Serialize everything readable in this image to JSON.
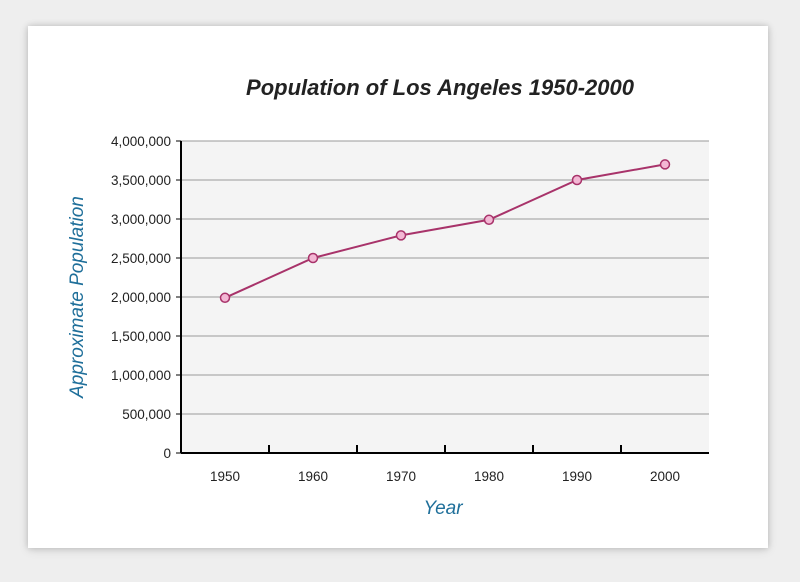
{
  "chart_data": {
    "type": "line",
    "title": "Population of Los Angeles 1950-2000",
    "xlabel": "Year",
    "ylabel": "Approximate Population",
    "x": [
      "1950",
      "1960",
      "1970",
      "1980",
      "1990",
      "2000"
    ],
    "series": [
      {
        "name": "Population",
        "values": [
          1990000,
          2500000,
          2790000,
          2990000,
          3500000,
          3700000
        ]
      }
    ],
    "ylim": [
      0,
      4000000
    ],
    "yticks": [
      "0",
      "500,000",
      "1,000,000",
      "1,500,000",
      "2,000,000",
      "2,500,000",
      "3,000,000",
      "3,500,000",
      "4,000,000"
    ],
    "ytick_values": [
      0,
      500000,
      1000000,
      1500000,
      2000000,
      2500000,
      3000000,
      3500000,
      4000000
    ],
    "grid": true,
    "colors": {
      "line": "#a8336a",
      "marker_fill": "#f3b7d4",
      "axis_title": "#1f6f9a",
      "plot_bg": "#f4f4f4",
      "grid": "#9a9a9a",
      "axis": "#000000"
    }
  }
}
